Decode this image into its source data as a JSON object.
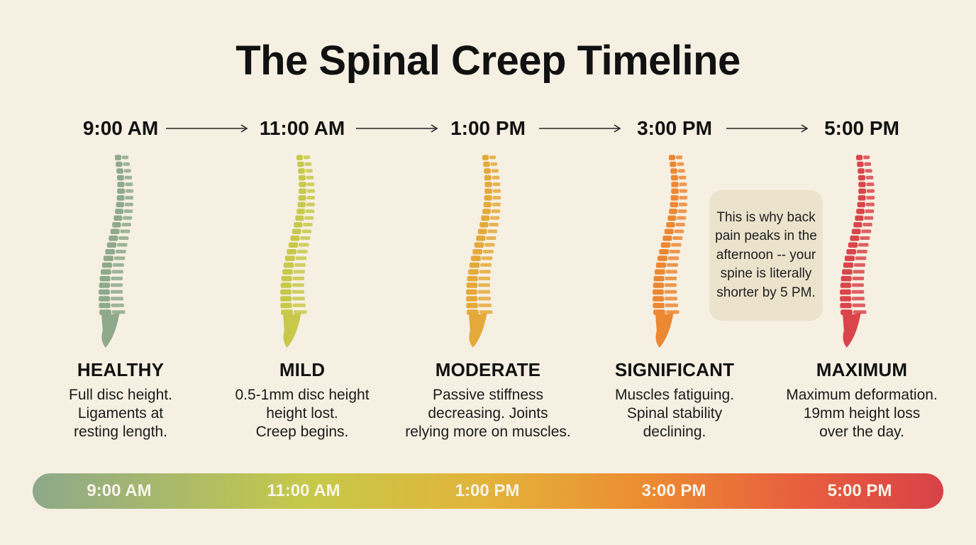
{
  "title": "The Spinal Creep Timeline",
  "stages": [
    {
      "time": "9:00 AM",
      "label": "HEALTHY",
      "desc": [
        "Full disc height.",
        "Ligaments at",
        "resting length."
      ],
      "color": "#8ea98b"
    },
    {
      "time": "11:00 AM",
      "label": "MILD",
      "desc": [
        "0.5-1mm disc height",
        "height lost.",
        "Creep begins."
      ],
      "color": "#c8c84a"
    },
    {
      "time": "1:00 PM",
      "label": "MODERATE",
      "desc": [
        "Passive stiffness",
        "decreasing. Joints",
        "relying more on muscles."
      ],
      "color": "#e4a93a"
    },
    {
      "time": "3:00 PM",
      "label": "SIGNIFICANT",
      "desc": [
        "Muscles fatiguing.",
        "Spinal stability",
        "declining."
      ],
      "color": "#ec8732"
    },
    {
      "time": "5:00 PM",
      "label": "MAXIMUM",
      "desc": [
        "Maximum deformation.",
        "19mm height loss",
        "over the day."
      ],
      "color": "#d9454a"
    }
  ],
  "callout": "This is why back pain peaks in the afternoon -- your spine is literally shorter by 5 PM.",
  "bar": {
    "ticks": [
      "9:00 AM",
      "11:00 AM",
      "1:00 PM",
      "3:00 PM",
      "5:00 PM"
    ]
  }
}
